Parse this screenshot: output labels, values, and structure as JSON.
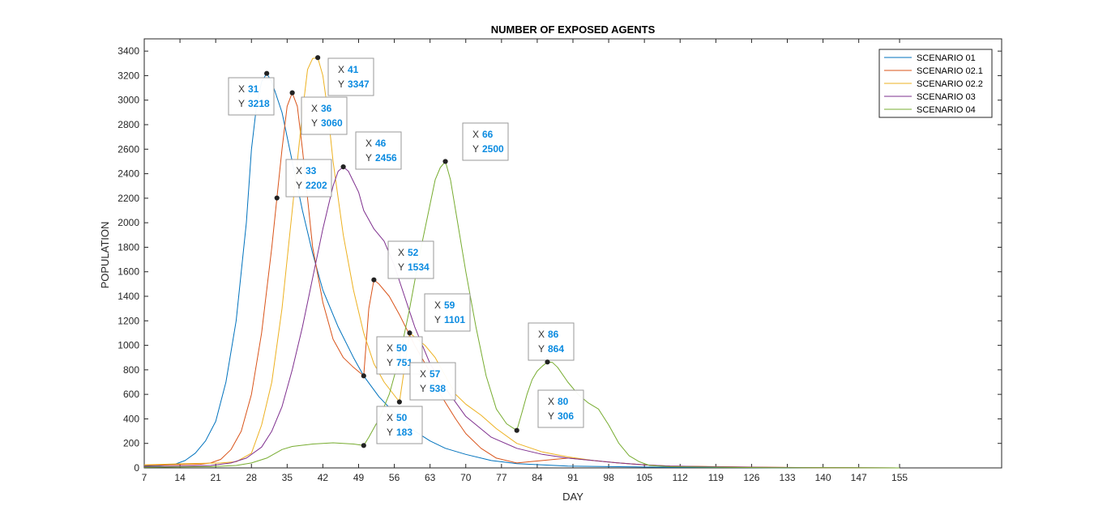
{
  "chart_data": {
    "type": "line",
    "title": "NUMBER OF EXPOSED AGENTS",
    "xlabel": "DAY",
    "ylabel": "POPULATION",
    "xlim": [
      7,
      175
    ],
    "ylim": [
      0,
      3500
    ],
    "x_ticks": [
      7,
      14,
      21,
      28,
      35,
      42,
      49,
      56,
      63,
      70,
      77,
      84,
      91,
      98,
      105,
      112,
      119,
      126,
      133,
      140,
      147,
      155
    ],
    "y_ticks": [
      0,
      200,
      400,
      600,
      800,
      1000,
      1200,
      1400,
      1600,
      1800,
      2000,
      2200,
      2400,
      2600,
      2800,
      3000,
      3200,
      3400
    ],
    "legend_position": "top-right",
    "grid": false,
    "series": [
      {
        "name": "SCENARIO 01",
        "color": "#0072BD",
        "x": [
          7,
          10,
          13,
          15,
          17,
          19,
          21,
          23,
          25,
          27,
          28,
          29,
          30,
          31,
          32,
          34,
          36,
          38,
          40,
          42,
          45,
          48,
          50,
          53,
          56,
          60,
          63,
          66,
          70,
          75,
          80,
          85,
          90,
          100,
          110,
          120,
          130,
          140,
          155
        ],
        "y": [
          15,
          20,
          30,
          60,
          120,
          220,
          380,
          700,
          1200,
          2000,
          2600,
          2950,
          3150,
          3218,
          3150,
          2900,
          2500,
          2100,
          1750,
          1450,
          1150,
          900,
          750,
          580,
          450,
          300,
          220,
          160,
          110,
          60,
          35,
          25,
          15,
          10,
          5,
          3,
          2,
          1,
          0
        ]
      },
      {
        "name": "SCENARIO 02.1",
        "color": "#D95319",
        "x": [
          7,
          12,
          18,
          20,
          22,
          24,
          26,
          28,
          30,
          32,
          33,
          34,
          35,
          36,
          37,
          38,
          39,
          40,
          42,
          44,
          46,
          48,
          50,
          51,
          52,
          53,
          55,
          57,
          60,
          63,
          65,
          68,
          70,
          73,
          76,
          80,
          85,
          90,
          95,
          100,
          105,
          110,
          120,
          130,
          140,
          155
        ],
        "y": [
          20,
          25,
          30,
          40,
          70,
          150,
          300,
          600,
          1100,
          1800,
          2202,
          2600,
          2950,
          3060,
          2950,
          2600,
          2200,
          1800,
          1350,
          1050,
          900,
          820,
          751,
          1300,
          1534,
          1500,
          1400,
          1250,
          1000,
          780,
          600,
          400,
          280,
          160,
          80,
          40,
          60,
          80,
          60,
          40,
          25,
          15,
          10,
          5,
          2,
          0
        ]
      },
      {
        "name": "SCENARIO 02.2",
        "color": "#EDB120",
        "x": [
          7,
          15,
          22,
          25,
          28,
          30,
          32,
          34,
          36,
          38,
          39,
          40,
          41,
          42,
          43,
          44,
          46,
          48,
          50,
          52,
          54,
          57,
          59,
          62,
          64,
          66,
          68,
          70,
          73,
          76,
          80,
          85,
          90,
          95,
          100,
          105,
          110,
          120,
          130,
          140,
          155
        ],
        "y": [
          25,
          35,
          40,
          50,
          120,
          350,
          700,
          1300,
          2100,
          2900,
          3250,
          3340,
          3347,
          3200,
          2900,
          2500,
          1900,
          1450,
          1100,
          850,
          700,
          538,
          1101,
          1000,
          900,
          750,
          600,
          520,
          430,
          320,
          200,
          130,
          90,
          60,
          40,
          25,
          15,
          8,
          4,
          2,
          0
        ]
      },
      {
        "name": "SCENARIO 03",
        "color": "#7E2F8E",
        "x": [
          7,
          15,
          20,
          24,
          27,
          30,
          32,
          34,
          36,
          38,
          40,
          42,
          44,
          45,
          46,
          47,
          49,
          50,
          52,
          54,
          56,
          58,
          60,
          63,
          66,
          70,
          75,
          80,
          85,
          90,
          95,
          100,
          105,
          110,
          120,
          130,
          140,
          155
        ],
        "y": [
          10,
          15,
          20,
          40,
          80,
          170,
          300,
          500,
          800,
          1150,
          1550,
          1950,
          2300,
          2420,
          2456,
          2420,
          2250,
          2100,
          1950,
          1850,
          1650,
          1400,
          1150,
          850,
          650,
          420,
          250,
          160,
          110,
          80,
          60,
          40,
          25,
          15,
          8,
          4,
          2,
          0
        ]
      },
      {
        "name": "SCENARIO 04",
        "color": "#77AC30",
        "x": [
          7,
          20,
          25,
          28,
          31,
          34,
          36,
          38,
          40,
          42,
          44,
          46,
          48,
          50,
          51,
          53,
          55,
          57,
          59,
          61,
          63,
          64,
          65,
          66,
          67,
          68,
          70,
          72,
          74,
          76,
          78,
          80,
          81,
          82,
          83,
          84,
          85,
          86,
          87,
          88,
          90,
          92,
          94,
          96,
          98,
          100,
          102,
          104,
          106,
          110,
          120,
          130,
          140,
          155
        ],
        "y": [
          5,
          10,
          20,
          40,
          80,
          150,
          175,
          185,
          195,
          200,
          205,
          200,
          195,
          183,
          250,
          400,
          600,
          900,
          1300,
          1750,
          2150,
          2350,
          2450,
          2500,
          2350,
          2100,
          1600,
          1150,
          750,
          480,
          360,
          306,
          450,
          600,
          720,
          790,
          830,
          864,
          860,
          820,
          700,
          600,
          530,
          480,
          350,
          200,
          100,
          50,
          20,
          10,
          5,
          2,
          1,
          0
        ]
      }
    ],
    "datatips": [
      {
        "x": 31,
        "y": 3218,
        "series": 0,
        "box": [
          282,
          96
        ]
      },
      {
        "x": 36,
        "y": 3060,
        "series": 1,
        "box": [
          372,
          120
        ]
      },
      {
        "x": 41,
        "y": 3347,
        "series": 2,
        "box": [
          405,
          72
        ]
      },
      {
        "x": 33,
        "y": 2202,
        "series": 1,
        "box": [
          353,
          197
        ]
      },
      {
        "x": 46,
        "y": 2456,
        "series": 3,
        "box": [
          439,
          163
        ]
      },
      {
        "x": 66,
        "y": 2500,
        "series": 4,
        "box": [
          571,
          152
        ]
      },
      {
        "x": 52,
        "y": 1534,
        "series": 1,
        "box": [
          479,
          298
        ]
      },
      {
        "x": 59,
        "y": 1101,
        "series": 2,
        "box": [
          524,
          363
        ]
      },
      {
        "x": 86,
        "y": 864,
        "series": 4,
        "box": [
          652,
          399
        ]
      },
      {
        "x": 50,
        "y": 751,
        "series": 1,
        "box": [
          465,
          416
        ]
      },
      {
        "x": 57,
        "y": 538,
        "series": 2,
        "box": [
          506,
          448
        ]
      },
      {
        "x": 80,
        "y": 306,
        "series": 4,
        "box": [
          664,
          482
        ]
      },
      {
        "x": 50,
        "y": 183,
        "series": 4,
        "box": [
          465,
          502
        ]
      }
    ]
  }
}
